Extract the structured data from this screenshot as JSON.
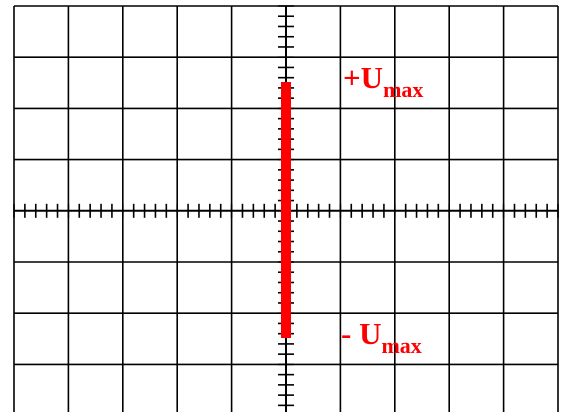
{
  "screen": {
    "grid_color": "#000000",
    "trace_color": "#ff0000",
    "label_color": "#ff0000",
    "background": "#ffffff",
    "divisions_x": 10,
    "divisions_y": 8,
    "subdivisions": 5
  },
  "trace": {
    "kind": "vertical-line",
    "top_value": "+Umax",
    "bottom_value": "-Umax"
  },
  "labels": {
    "top_prefix": "+U",
    "top_sub": "max",
    "bottom_prefix": "- U",
    "bottom_sub": "max"
  }
}
